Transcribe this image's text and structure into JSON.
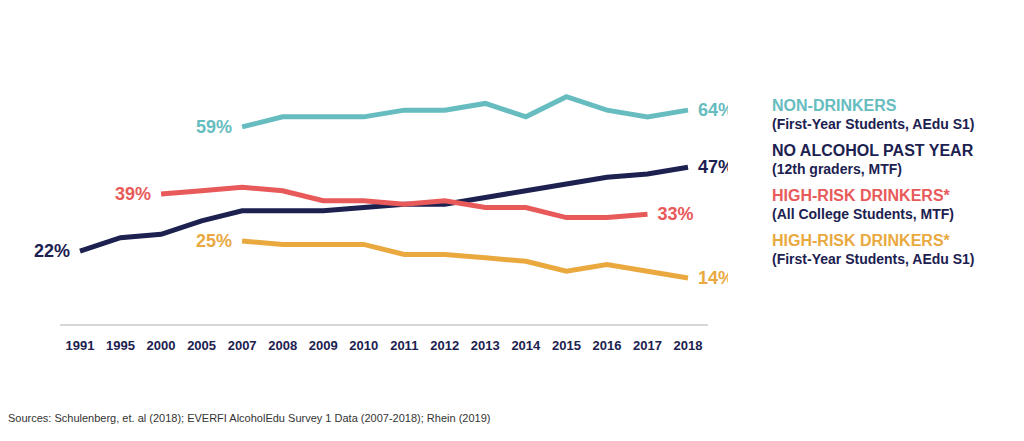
{
  "chart_data": {
    "type": "line",
    "categories": [
      "1991",
      "1995",
      "2000",
      "2005",
      "2007",
      "2008",
      "2009",
      "2010",
      "2011",
      "2012",
      "2013",
      "2014",
      "2015",
      "2016",
      "2017",
      "2018"
    ],
    "ylim": [
      0,
      70
    ],
    "tick_labels": "x",
    "grid": false,
    "legend": "right",
    "source": "Sources: Schulenberg, et. al (2018); EVERFI AlcoholEdu Survey 1 Data (2007-2018); Rhein (2019)",
    "series": [
      {
        "name": "NON-DRINKERS",
        "subtitle": "(First-Year Students, AEdu S1)",
        "color": "#66bcbf",
        "values": [
          null,
          null,
          null,
          null,
          59,
          62,
          62,
          62,
          64,
          64,
          66,
          62,
          68,
          64,
          62,
          64
        ],
        "value_labels": [
          null,
          null,
          null,
          null,
          "59%",
          null,
          null,
          null,
          null,
          null,
          null,
          null,
          null,
          null,
          null,
          "64%"
        ]
      },
      {
        "name": "NO ALCOHOL PAST YEAR",
        "subtitle": "(12th graders, MTF)",
        "color": "#1c2150",
        "values": [
          22,
          26,
          27,
          31,
          34,
          34,
          34,
          35,
          36,
          36,
          38,
          40,
          42,
          44,
          45,
          47
        ],
        "value_labels": [
          "22%",
          null,
          null,
          null,
          null,
          null,
          null,
          null,
          null,
          null,
          null,
          null,
          null,
          null,
          null,
          "47%"
        ]
      },
      {
        "name": "HIGH-RISK DRINKERS*",
        "subtitle": "(All College Students, MTF)",
        "color": "#e85a5a",
        "values": [
          null,
          null,
          39,
          40,
          41,
          40,
          37,
          37,
          36,
          37,
          35,
          35,
          32,
          32,
          33,
          null
        ],
        "value_labels": [
          null,
          null,
          "39%",
          null,
          null,
          null,
          null,
          null,
          null,
          null,
          null,
          null,
          null,
          null,
          "33%",
          null
        ]
      },
      {
        "name": "HIGH-RISK DRINKERS*",
        "subtitle": "(First-Year Students, AEdu S1)",
        "color": "#e9a93f",
        "values": [
          null,
          null,
          null,
          null,
          25,
          24,
          24,
          24,
          21,
          21,
          20,
          19,
          16,
          18,
          16,
          14
        ],
        "value_labels": [
          null,
          null,
          null,
          null,
          "25%",
          null,
          null,
          null,
          null,
          null,
          null,
          null,
          null,
          null,
          null,
          "14%"
        ]
      }
    ]
  }
}
